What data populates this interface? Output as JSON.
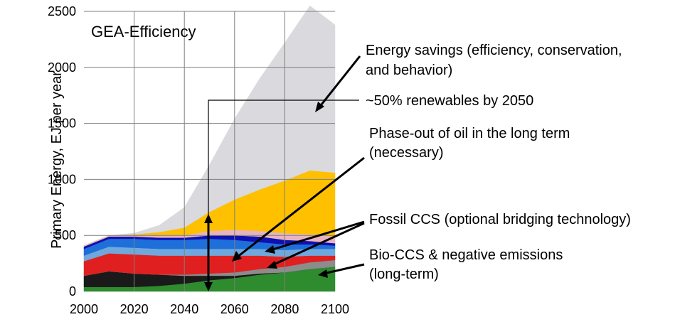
{
  "chart_data": {
    "type": "area",
    "title": "GEA-Efficiency",
    "ylabel": "Primary Energy, EJ per year",
    "xlabel": "",
    "x": [
      2000,
      2010,
      2020,
      2030,
      2040,
      2050,
      2060,
      2070,
      2080,
      2090,
      2100
    ],
    "xlim": [
      2000,
      2100
    ],
    "ylim": [
      0,
      2500
    ],
    "xticks": [
      "2000",
      "2020",
      "2040",
      "2060",
      "2080",
      "2100"
    ],
    "yticks": [
      "0",
      "500",
      "1000",
      "1500",
      "2000",
      "2500"
    ],
    "grid": true,
    "stacked_series": [
      {
        "color": "#2e8b2e",
        "values": [
          40,
          40,
          40,
          50,
          70,
          100,
          120,
          150,
          170,
          200,
          220
        ]
      },
      {
        "color": "#1a1a1a",
        "values": [
          100,
          140,
          120,
          100,
          70,
          40,
          20,
          10,
          0,
          0,
          0
        ]
      },
      {
        "color": "#8c8c8c",
        "values": [
          0,
          0,
          0,
          0,
          10,
          20,
          30,
          40,
          50,
          60,
          60
        ]
      },
      {
        "color": "#e02020",
        "values": [
          130,
          160,
          170,
          170,
          170,
          160,
          150,
          120,
          90,
          60,
          40
        ]
      },
      {
        "color": "#6fa8dc",
        "values": [
          50,
          60,
          60,
          60,
          60,
          60,
          60,
          60,
          60,
          60,
          60
        ]
      },
      {
        "color": "#1e6fd9",
        "values": [
          60,
          70,
          80,
          80,
          80,
          90,
          80,
          60,
          50,
          40,
          30
        ]
      },
      {
        "color": "#1010b0",
        "values": [
          20,
          20,
          20,
          20,
          20,
          30,
          40,
          50,
          40,
          30,
          20
        ]
      },
      {
        "color": "#e8b4c0",
        "values": [
          10,
          10,
          10,
          20,
          20,
          40,
          50,
          50,
          60,
          60,
          60
        ]
      },
      {
        "color": "#ffc000",
        "values": [
          0,
          0,
          10,
          30,
          70,
          170,
          270,
          370,
          470,
          570,
          570
        ]
      },
      {
        "color": "#d9d9de",
        "values": [
          0,
          0,
          10,
          60,
          180,
          420,
          720,
          990,
          1230,
          1470,
          1320
        ]
      }
    ],
    "annotations": [
      {
        "text": "Energy savings (efficiency, conservation,",
        "text2": "and behavior)"
      },
      {
        "text": "~50% renewables by 2050"
      },
      {
        "text": "Phase-out of oil in the long term",
        "text2": "(necessary)"
      },
      {
        "text": "Fossil CCS (optional bridging technology)"
      },
      {
        "text": "Bio-CCS & negative emissions",
        "text2": "(long-term)"
      }
    ]
  }
}
